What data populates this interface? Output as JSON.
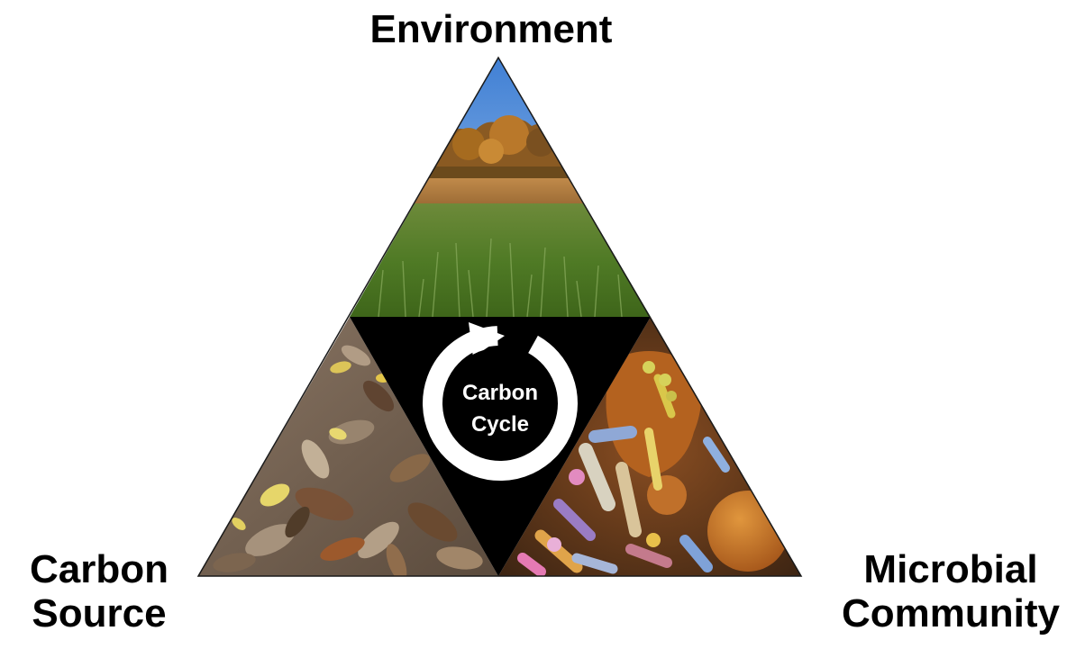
{
  "labels": {
    "top": "Environment",
    "left_line1": "Carbon",
    "left_line2": "Source",
    "right_line1": "Microbial",
    "right_line2": "Community"
  },
  "center": {
    "line1": "Carbon",
    "line2": "Cycle"
  },
  "panels": {
    "top": "grassland-photo",
    "left": "leaf-litter-photo",
    "right": "microbes-micrograph-photo",
    "center": "black-inverted-triangle"
  },
  "colors": {
    "background": "#ffffff",
    "text": "#000000",
    "center_fill": "#000000",
    "center_text": "#ffffff"
  }
}
